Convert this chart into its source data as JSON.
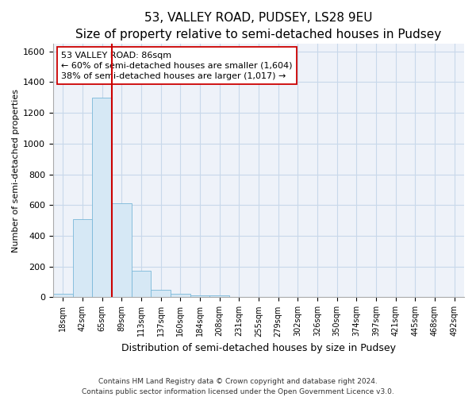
{
  "title": "53, VALLEY ROAD, PUDSEY, LS28 9EU",
  "subtitle": "Size of property relative to semi-detached houses in Pudsey",
  "xlabel": "Distribution of semi-detached houses by size in Pudsey",
  "ylabel": "Number of semi-detached properties",
  "footnote1": "Contains HM Land Registry data © Crown copyright and database right 2024.",
  "footnote2": "Contains public sector information licensed under the Open Government Licence v3.0.",
  "bar_labels": [
    "18sqm",
    "42sqm",
    "65sqm",
    "89sqm",
    "113sqm",
    "137sqm",
    "160sqm",
    "184sqm",
    "208sqm",
    "231sqm",
    "255sqm",
    "279sqm",
    "302sqm",
    "326sqm",
    "350sqm",
    "374sqm",
    "397sqm",
    "421sqm",
    "445sqm",
    "468sqm",
    "492sqm"
  ],
  "bar_values": [
    25,
    510,
    1300,
    610,
    175,
    50,
    25,
    15,
    12,
    0,
    0,
    0,
    0,
    0,
    0,
    0,
    0,
    0,
    0,
    0,
    0
  ],
  "bar_color": "#d6e8f5",
  "bar_edgecolor": "#7ab8d9",
  "grid_color": "#c8d8ea",
  "annotation_line1": "53 VALLEY ROAD: 86sqm",
  "annotation_line2": "← 60% of semi-detached houses are smaller (1,604)",
  "annotation_line3": "38% of semi-detached houses are larger (1,017) →",
  "vline_color": "#cc0000",
  "ylim": [
    0,
    1650
  ],
  "yticks": [
    0,
    200,
    400,
    600,
    800,
    1000,
    1200,
    1400,
    1600
  ],
  "background_color": "#eef2f9",
  "plot_background": "#ffffff",
  "title_fontsize": 11,
  "subtitle_fontsize": 9,
  "xlabel_fontsize": 9,
  "ylabel_fontsize": 8,
  "tick_fontsize": 8,
  "annot_fontsize": 8,
  "footnote_fontsize": 6.5
}
